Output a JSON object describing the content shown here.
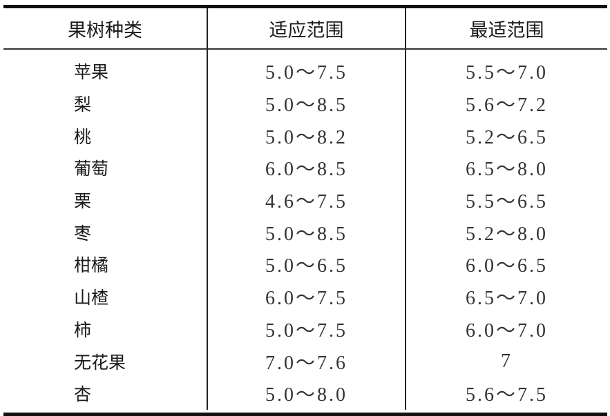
{
  "headers": [
    "果树种类",
    "适应范围",
    "最适范围"
  ],
  "rows": [
    {
      "species": "苹果",
      "suitable": "5.0～7.5",
      "optimal": "5.5～7.0"
    },
    {
      "species": "梨",
      "suitable": "5.0～8.5",
      "optimal": "5.6～7.2"
    },
    {
      "species": "桃",
      "suitable": "5.0～8.2",
      "optimal": "5.2～6.5"
    },
    {
      "species": "葡萄",
      "suitable": "6.0～8.5",
      "optimal": "6.5～8.0"
    },
    {
      "species": "栗",
      "suitable": "4.6～7.5",
      "optimal": "5.5～6.5"
    },
    {
      "species": "枣",
      "suitable": "5.0～8.5",
      "optimal": "5.2～8.0"
    },
    {
      "species": "柑橘",
      "suitable": "5.0～6.5",
      "optimal": "6.0～6.5"
    },
    {
      "species": "山楂",
      "suitable": "6.0～7.5",
      "optimal": "6.5～7.0"
    },
    {
      "species": "柿",
      "suitable": "5.0～7.5",
      "optimal": "6.0～7.0"
    },
    {
      "species": "无花果",
      "suitable": "7.0～7.6",
      "optimal": "7"
    },
    {
      "species": "杏",
      "suitable": "5.0～8.0",
      "optimal": "5.6～7.5"
    }
  ]
}
